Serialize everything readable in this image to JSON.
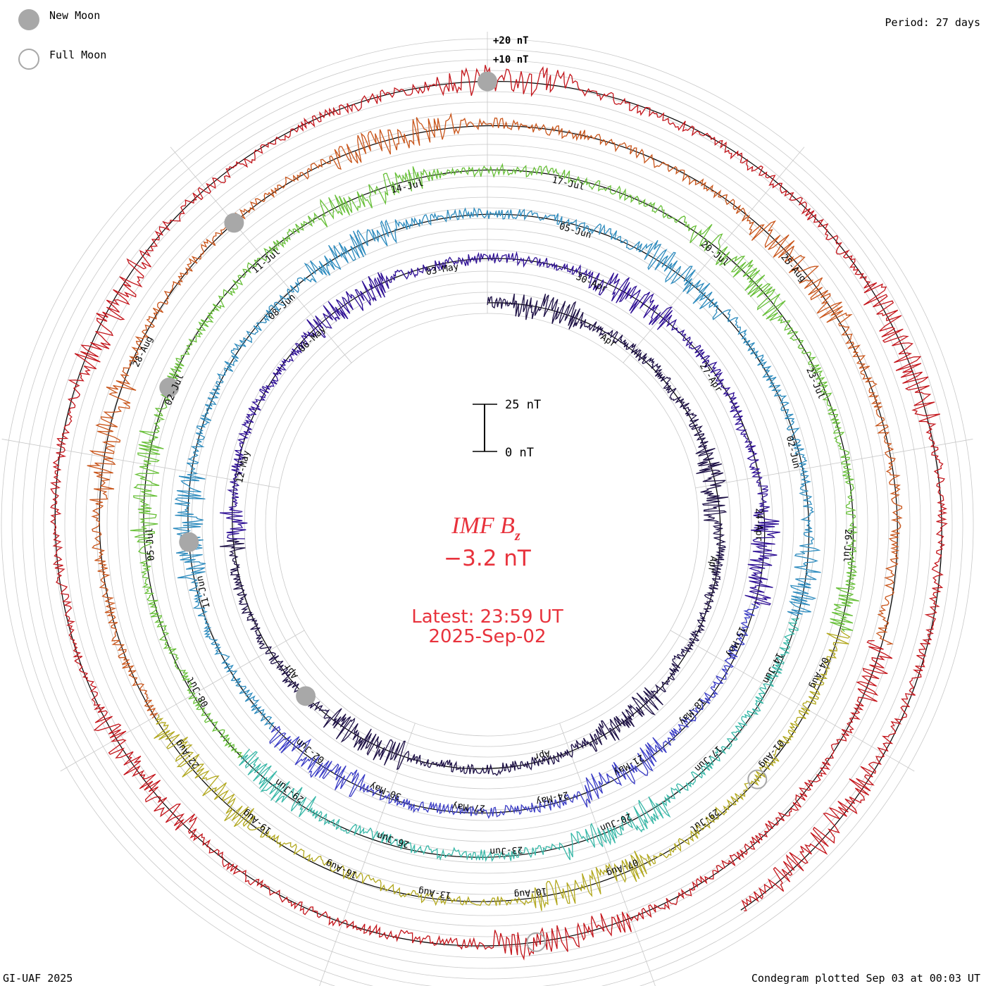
{
  "header": {
    "legend_new_moon": "New Moon",
    "legend_full_moon": "Full Moon",
    "period": "Period: 27 days"
  },
  "footer": {
    "credit": "GI-UAF 2025",
    "plotted": "Condegram plotted Sep 03 at 00:03 UT"
  },
  "center": {
    "title_main": "IMF B",
    "title_sub": "z",
    "current_value": "−3.2 nT",
    "latest_time": "Latest: 23:59 UT",
    "latest_date": "2025-Sep-02",
    "scale_top": "25 nT",
    "scale_bottom": "0 nT",
    "text_color": "#e8323c"
  },
  "chart_data": {
    "type": "line",
    "period_days": 27,
    "scale_labels": [
      "+20 nT",
      "+10 nT"
    ],
    "quantity": "IMF Bz",
    "colors": {
      "moon_marker": "#a8a8a8",
      "grid": "#c8c8c8",
      "baseline": "#000000"
    },
    "series": [
      {
        "color": "#1c0f45",
        "start_date": "2025-04-10",
        "date_labels": [
          "Apr",
          "Apr",
          "Apr",
          "Apr"
        ]
      },
      {
        "color": "#2e0f95",
        "start_date": "2025-04-30",
        "date_labels": [
          "12-May",
          "06-May",
          "03-May",
          "30-Apr",
          "27-Apr",
          "24-Apr"
        ]
      },
      {
        "color": "#3a3cc6",
        "start_date": "2025-05-15",
        "date_labels": [
          "15-May",
          "18-May",
          "21-May",
          "24-May",
          "27-May",
          "30-May",
          "02-Jun"
        ]
      },
      {
        "color": "#2d8bbe",
        "start_date": "2025-05-24",
        "date_labels": [
          "11-Jun",
          "08-Jun",
          "05-Jun",
          "02-Jun"
        ]
      },
      {
        "color": "#38b8a8",
        "start_date": "2025-06-11",
        "date_labels": [
          "14-Jun",
          "17-Jun",
          "20-Jun",
          "23-Jun",
          "26-Jun",
          "29-Jun"
        ]
      },
      {
        "color": "#68c039",
        "start_date": "2025-06-20",
        "date_labels": [
          "08-Jul",
          "05-Jul",
          "02-Jul",
          "11-Jul",
          "14-Jul",
          "17-Jul",
          "20-Jul",
          "23-Jul",
          "26-Jul"
        ]
      },
      {
        "color": "#b2a81e",
        "start_date": "2025-07-08",
        "date_labels": [
          "04-Aug",
          "01-Aug",
          "29-Jul",
          "07-Aug",
          "10-Aug",
          "13-Aug",
          "16-Aug",
          "19-Aug",
          "22-Aug"
        ]
      },
      {
        "color": "#c9551a",
        "start_date": "2025-07-18",
        "date_labels": [
          "28-Aug",
          "25-Aug"
        ]
      },
      {
        "color": "#c4161c",
        "start_date": "2025-08-04"
      }
    ],
    "new_moon_dates": [
      "2025-04-27",
      "2025-05-27",
      "2025-06-25",
      "2025-07-24",
      "2025-08-23"
    ],
    "full_moon_dates": [
      "2025-07-10",
      "2025-08-09"
    ]
  }
}
